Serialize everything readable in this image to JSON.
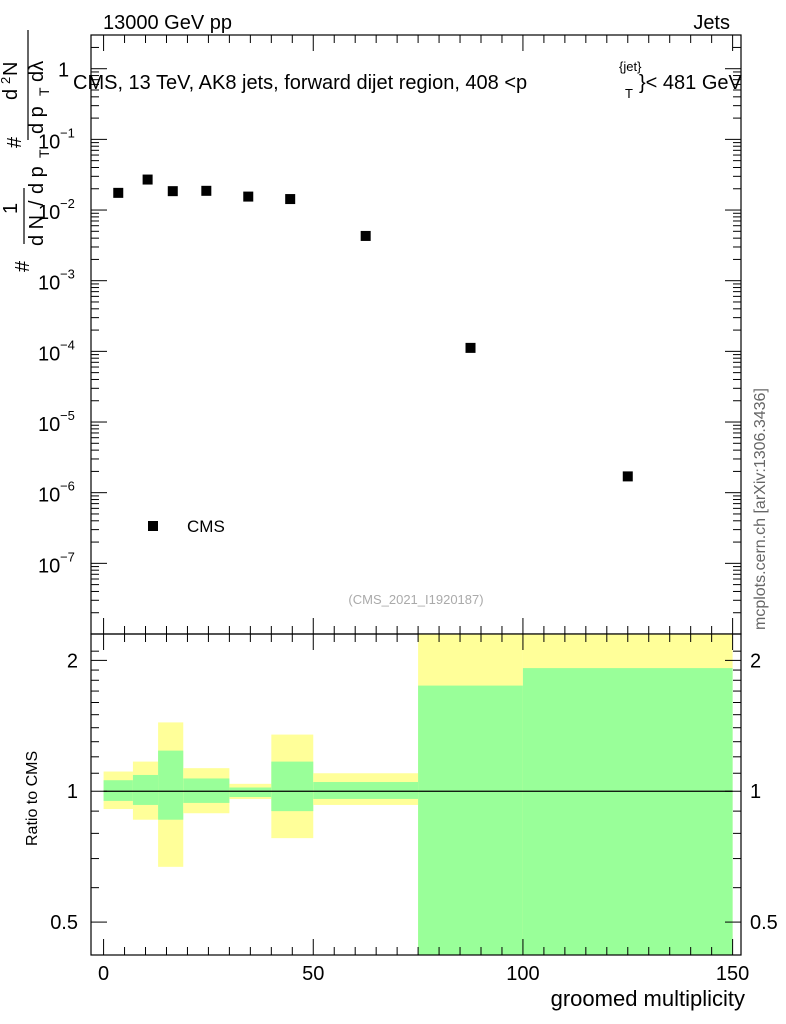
{
  "header": {
    "left": "13000 GeV pp",
    "right": "Jets"
  },
  "side_label": "mcplots.cern.ch [arXiv:1306.3436]",
  "chart_data": [
    {
      "type": "scatter",
      "title": "CMS, 13 TeV, AK8 jets, forward dijet region, 408 <p",
      "title_sup": "{jet}",
      "title_sub": "T",
      "title_end": "}< 481 GeV",
      "watermark": "(CMS_2021_I1920187)",
      "ylabel_parts": [
        "#",
        "1",
        "d N",
        "/",
        "d p",
        "T",
        "#",
        "d",
        "2",
        "N",
        "d p",
        "T",
        "dλ"
      ],
      "y_scale": "log",
      "ylim": [
        1e-08,
        3
      ],
      "y_ticks": [
        {
          "v": 1,
          "label": "1"
        },
        {
          "v": 0.1,
          "label": "10",
          "exp": "−1"
        },
        {
          "v": 0.01,
          "label": "10",
          "exp": "−2"
        },
        {
          "v": 0.001,
          "label": "10",
          "exp": "−3"
        },
        {
          "v": 0.0001,
          "label": "10",
          "exp": "−4"
        },
        {
          "v": 1e-05,
          "label": "10",
          "exp": "−5"
        },
        {
          "v": 1e-06,
          "label": "10",
          "exp": "−6"
        },
        {
          "v": 1e-07,
          "label": "10",
          "exp": "−7"
        }
      ],
      "xlim": [
        -3,
        152
      ],
      "legend": {
        "label": "CMS",
        "position": "bottom-left"
      },
      "series": [
        {
          "name": "CMS",
          "x": [
            3.5,
            10.5,
            16.5,
            24.5,
            34.5,
            44.5,
            62.5,
            87.5,
            125
          ],
          "y": [
            0.0175,
            0.027,
            0.0185,
            0.0187,
            0.0155,
            0.0143,
            0.0043,
            0.000112,
            1.7e-06
          ]
        }
      ]
    },
    {
      "type": "area",
      "ylabel": "Ratio to CMS",
      "xlabel": "groomed multiplicity",
      "y_scale": "log",
      "ylim": [
        0.42,
        2.3
      ],
      "xlim": [
        -3,
        152
      ],
      "y_ticks": [
        {
          "v": 0.5,
          "label": "0.5"
        },
        {
          "v": 1,
          "label": "1"
        },
        {
          "v": 2,
          "label": "2"
        }
      ],
      "x_ticks": [
        {
          "v": 0,
          "label": "0"
        },
        {
          "v": 50,
          "label": "50"
        },
        {
          "v": 100,
          "label": "100"
        },
        {
          "v": 150,
          "label": "150"
        }
      ],
      "reference": 1,
      "bands": [
        {
          "x0": 0,
          "x1": 7,
          "yellow": [
            0.91,
            1.11
          ],
          "green": [
            0.95,
            1.06
          ]
        },
        {
          "x0": 7,
          "x1": 13,
          "yellow": [
            0.86,
            1.17
          ],
          "green": [
            0.93,
            1.09
          ]
        },
        {
          "x0": 13,
          "x1": 19,
          "yellow": [
            0.67,
            1.44
          ],
          "green": [
            0.86,
            1.24
          ]
        },
        {
          "x0": 19,
          "x1": 30,
          "yellow": [
            0.89,
            1.13
          ],
          "green": [
            0.94,
            1.07
          ]
        },
        {
          "x0": 30,
          "x1": 40,
          "yellow": [
            0.96,
            1.04
          ],
          "green": [
            0.97,
            1.02
          ]
        },
        {
          "x0": 40,
          "x1": 50,
          "yellow": [
            0.78,
            1.35
          ],
          "green": [
            0.9,
            1.17
          ]
        },
        {
          "x0": 50,
          "x1": 75,
          "yellow": [
            0.93,
            1.1
          ],
          "green": [
            0.96,
            1.05
          ]
        },
        {
          "x0": 75,
          "x1": 100,
          "yellow": [
            0.42,
            2.3
          ],
          "green": [
            0.42,
            1.75
          ]
        },
        {
          "x0": 100,
          "x1": 150,
          "yellow": [
            0.42,
            2.3
          ],
          "green": [
            0.42,
            1.92
          ]
        }
      ],
      "colors": {
        "yellow": "#ffff99",
        "green": "#99ff99"
      }
    }
  ]
}
